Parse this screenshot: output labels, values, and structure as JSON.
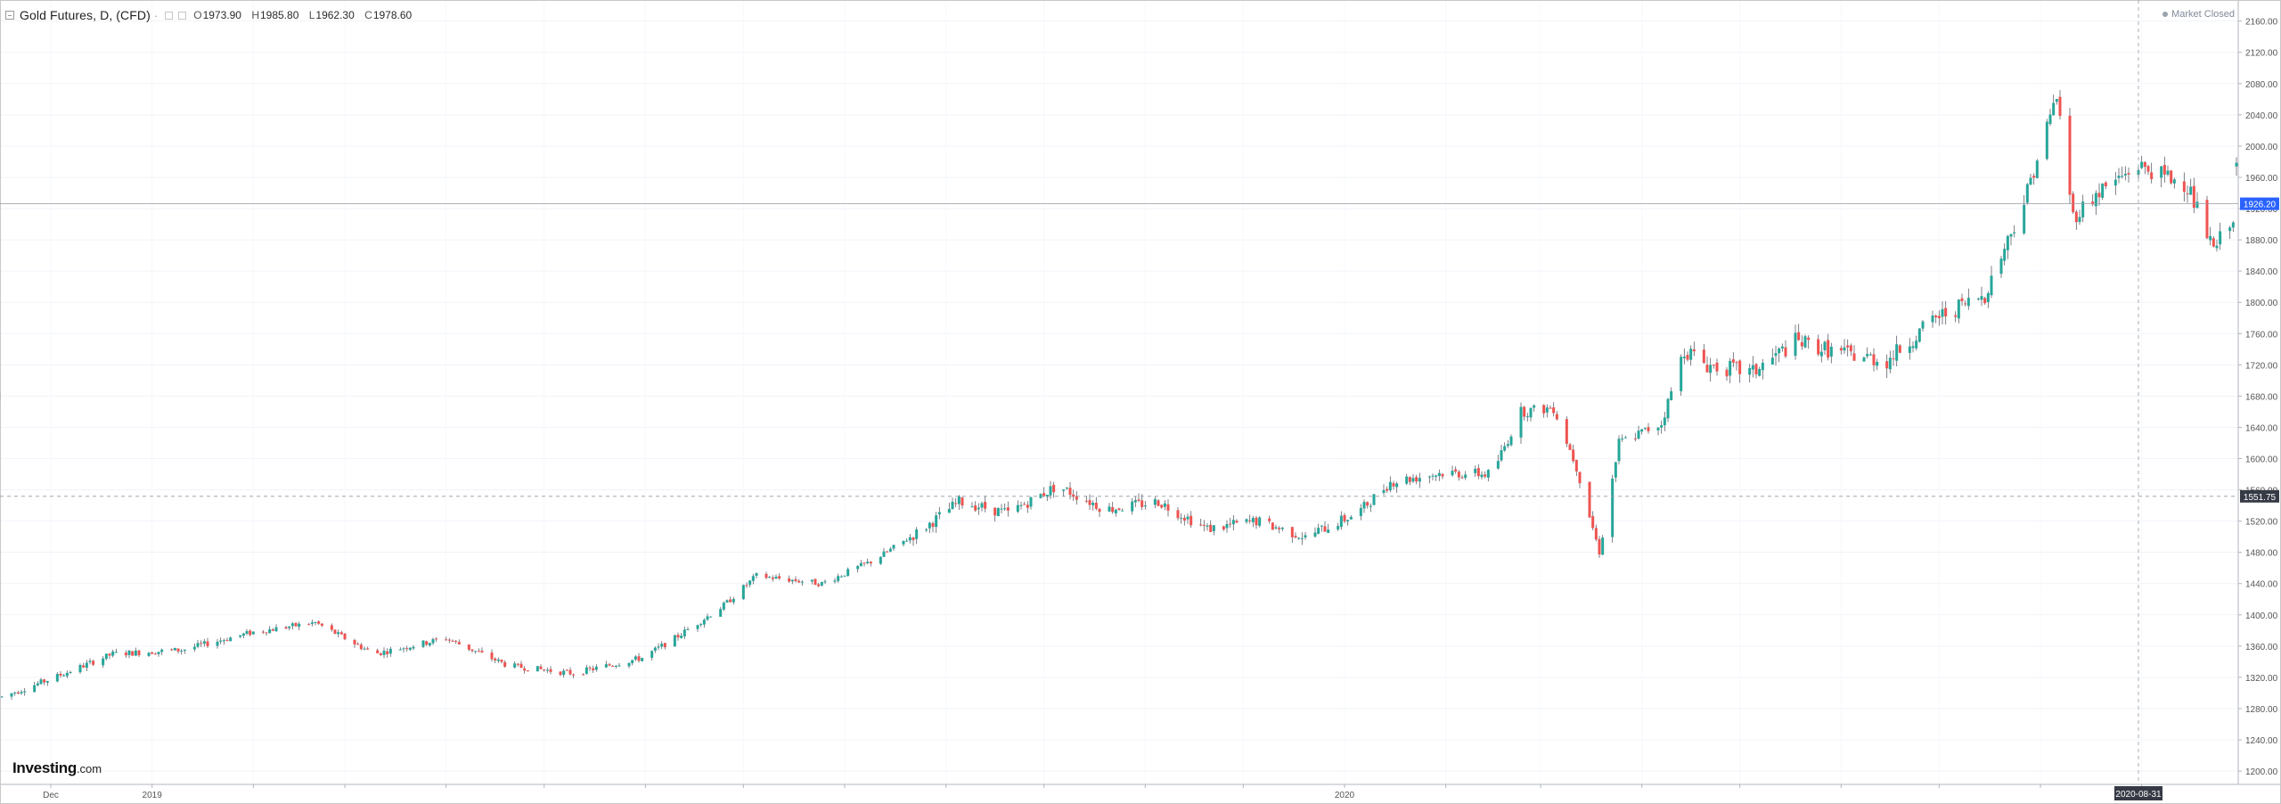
{
  "header": {
    "title": "Gold Futures, D, (CFD)",
    "dash": "·",
    "ohlc": {
      "o_label": "O",
      "o_value": "1973.90",
      "h_label": "H",
      "h_value": "1985.80",
      "l_label": "L",
      "l_value": "1962.30",
      "c_label": "C",
      "c_value": "1978.60"
    }
  },
  "market_status": "Market Closed",
  "watermark": {
    "brand": "Investing",
    "suffix": ".com"
  },
  "colors": {
    "up": "#26a69a",
    "down": "#ef5350",
    "grid": "#f0f3fa",
    "axis_text": "#555555",
    "price_tag": "#2962ff",
    "crosshair_tag": "#363a45"
  },
  "chart_data": {
    "type": "candlestick",
    "title": "Gold Futures, D, (CFD)",
    "y_ticks": [
      2160,
      2120,
      2080,
      2040,
      2000,
      1960,
      1920,
      1880,
      1840,
      1800,
      1760,
      1720,
      1680,
      1640,
      1600,
      1560,
      1520,
      1480,
      1440,
      1400,
      1360,
      1320,
      1280,
      1240,
      1200
    ],
    "y_tick_labels": [
      "2160.00",
      "2120.00",
      "2080.00",
      "2040.00",
      "2000.00",
      "1960.00",
      "1920.00",
      "1880.00",
      "1840.00",
      "1800.00",
      "1760.00",
      "1720.00",
      "1680.00",
      "1640.00",
      "1600.00",
      "1560.00",
      "1520.00",
      "1480.00",
      "1440.00",
      "1400.00",
      "1360.00",
      "1320.00",
      "1280.00",
      "1240.00",
      "1200.00"
    ],
    "ylim": [
      1183,
      2187
    ],
    "x_labels": [
      {
        "label": "Dec",
        "date": "2018-12-01"
      },
      {
        "label": "2019",
        "date": "2019-01-01"
      },
      {
        "label": "2020",
        "date": "2020-01-01"
      }
    ],
    "xlim": [
      "2018-11-16",
      "2020-09-30"
    ],
    "last_price": 1926.2,
    "last_price_label": "1926.20",
    "crosshair_price": 1551.75,
    "crosshair_price_label": "1551.75",
    "crosshair_date": "2020-08-31",
    "crosshair_date_label": "2020-08-31",
    "trend_points": [
      [
        "2018-11-16",
        1295
      ],
      [
        "2018-12-01",
        1318
      ],
      [
        "2018-12-20",
        1350
      ],
      [
        "2019-01-10",
        1355
      ],
      [
        "2019-02-01",
        1378
      ],
      [
        "2019-02-20",
        1390
      ],
      [
        "2019-03-10",
        1350
      ],
      [
        "2019-04-01",
        1370
      ],
      [
        "2019-04-20",
        1335
      ],
      [
        "2019-05-10",
        1325
      ],
      [
        "2019-05-31",
        1345
      ],
      [
        "2019-06-10",
        1370
      ],
      [
        "2019-06-25",
        1412
      ],
      [
        "2019-07-05",
        1450
      ],
      [
        "2019-07-25",
        1440
      ],
      [
        "2019-08-10",
        1470
      ],
      [
        "2019-08-25",
        1510
      ],
      [
        "2019-09-05",
        1545
      ],
      [
        "2019-09-20",
        1530
      ],
      [
        "2019-10-05",
        1565
      ],
      [
        "2019-10-20",
        1535
      ],
      [
        "2019-11-05",
        1545
      ],
      [
        "2019-11-20",
        1510
      ],
      [
        "2019-12-05",
        1520
      ],
      [
        "2019-12-20",
        1500
      ],
      [
        "2020-01-05",
        1530
      ],
      [
        "2020-01-15",
        1570
      ],
      [
        "2020-01-31",
        1582
      ],
      [
        "2020-02-15",
        1580
      ],
      [
        "2020-02-24",
        1660
      ],
      [
        "2020-03-05",
        1665
      ],
      [
        "2020-03-12",
        1590
      ],
      [
        "2020-03-19",
        1480
      ],
      [
        "2020-03-25",
        1620
      ],
      [
        "2020-04-07",
        1645
      ],
      [
        "2020-04-14",
        1740
      ],
      [
        "2020-04-21",
        1720
      ],
      [
        "2020-05-05",
        1710
      ],
      [
        "2020-05-18",
        1750
      ],
      [
        "2020-06-01",
        1735
      ],
      [
        "2020-06-15",
        1725
      ],
      [
        "2020-06-30",
        1780
      ],
      [
        "2020-07-15",
        1810
      ],
      [
        "2020-07-27",
        1930
      ],
      [
        "2020-08-06",
        2065
      ],
      [
        "2020-08-11",
        1910
      ],
      [
        "2020-08-20",
        1945
      ],
      [
        "2020-08-31",
        1975
      ],
      [
        "2020-09-15",
        1950
      ],
      [
        "2020-09-23",
        1865
      ],
      [
        "2020-09-30",
        1920
      ]
    ]
  }
}
